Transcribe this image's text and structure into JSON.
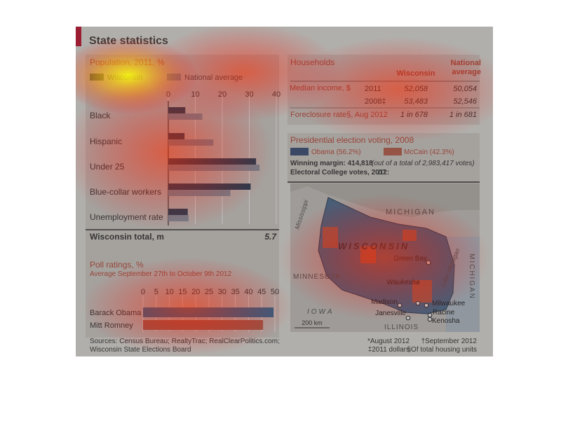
{
  "title": "State statistics",
  "population": {
    "title": "Population, 2011, %",
    "legend": [
      "Wisconsin",
      "National average"
    ],
    "ticks": [
      0,
      10,
      20,
      30,
      40
    ],
    "xlim": [
      0,
      40
    ],
    "categories": [
      "Black",
      "Hispanic",
      "Under 25",
      "Blue-collar workers",
      "Unemployment rate"
    ],
    "wisconsin": [
      6.3,
      6.0,
      32.5,
      30.5,
      7.2
    ],
    "national": [
      12.6,
      16.7,
      33.8,
      23.0,
      7.5
    ],
    "total_label": "Wisconsin total, m",
    "total_value": "5.7"
  },
  "households": {
    "title": "Households",
    "col_wi": "Wisconsin",
    "col_nat": "National average",
    "median_label": "Median income, $",
    "rows": [
      {
        "year": "2011",
        "wi": "52,058",
        "nat": "50,054"
      },
      {
        "year": "2008‡",
        "wi": "53,483",
        "nat": "52,546"
      }
    ],
    "foreclosure_label": "Foreclosure rate§, Aug 2012",
    "foreclosure_wi": "1 in 678",
    "foreclosure_nat": "1 in 681"
  },
  "election": {
    "title": "Presidential election voting, 2008",
    "obama": "Obama (56.2%)",
    "mccain": "McCain (42.3%)",
    "margin_label": "Winning margin: 414,818",
    "margin_note": "(out of a total of 2,983,417 votes)",
    "ec_label": "Electoral College votes, 2012:",
    "ec_value": "10"
  },
  "map": {
    "state": "WISCONSIN",
    "michigan_top": "MICHIGAN",
    "michigan_right": "MICHIGAN",
    "minnesota": "MINNESOTA",
    "iowa": "IOWA",
    "illinois": "ILLINOIS",
    "river": "Mississippi",
    "lake": "Lake Michigan",
    "scale": "200 km",
    "cities": [
      "Green Bay",
      "Waukesha",
      "Madison",
      "Milwaukee",
      "Janesville",
      "Racine",
      "Kenosha"
    ]
  },
  "poll": {
    "title": "Poll ratings, %",
    "subtitle": "Average September 27th to October 9th 2012",
    "ticks": [
      0,
      5,
      10,
      15,
      20,
      25,
      30,
      35,
      40,
      45,
      50
    ],
    "xlim": [
      0,
      50
    ],
    "candidates": [
      "Barack Obama",
      "Mitt Romney"
    ],
    "values": [
      49.5,
      45.5
    ]
  },
  "sources": "Sources: Census Bureau; RealtyTrac; RealClearPolitics.com; Wisconsin State Elections Board",
  "footnotes": {
    "f1": "*August 2012",
    "f2": "†September 2012",
    "f3": "‡2011 dollars",
    "f4": "§Of total housing units"
  },
  "chart_data": [
    {
      "type": "bar",
      "title": "Population, 2011, %",
      "categories": [
        "Black",
        "Hispanic",
        "Under 25",
        "Blue-collar workers",
        "Unemployment rate"
      ],
      "series": [
        {
          "name": "Wisconsin",
          "values": [
            6.3,
            6.0,
            32.5,
            30.5,
            7.2
          ]
        },
        {
          "name": "National average",
          "values": [
            12.6,
            16.7,
            33.8,
            23.0,
            7.5
          ]
        }
      ],
      "xlim": [
        0,
        40
      ]
    },
    {
      "type": "bar",
      "title": "Poll ratings, %",
      "subtitle": "Average September 27th to October 9th 2012",
      "categories": [
        "Barack Obama",
        "Mitt Romney"
      ],
      "values": [
        49.5,
        45.5
      ],
      "xlim": [
        0,
        50
      ]
    }
  ],
  "colors": {
    "accent": "#c8102e",
    "wi_dark": "#1f3d57",
    "nat": "#8a9cad",
    "obama": "#2a74a6",
    "mccain": "#c2604c",
    "title_text": "#c14b37"
  }
}
